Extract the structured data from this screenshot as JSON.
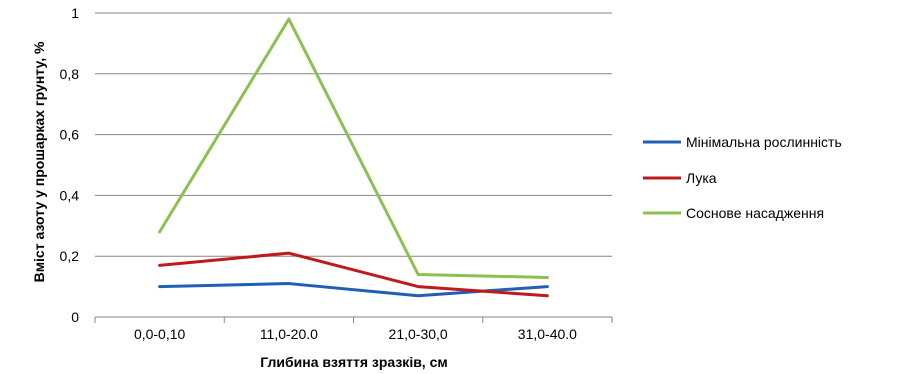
{
  "chart_data": {
    "type": "line",
    "categories": [
      "0,0-0,10",
      "11,0-20.0",
      "21,0-30,0",
      "31,0-40.0"
    ],
    "series": [
      {
        "name": "Мінімальна рослинність",
        "color": "#1f5fb4",
        "values": [
          0.1,
          0.11,
          0.07,
          0.1
        ]
      },
      {
        "name": "Лука",
        "color": "#c0191b",
        "values": [
          0.17,
          0.21,
          0.1,
          0.07
        ]
      },
      {
        "name": "Соснове насадження",
        "color": "#8cc152",
        "values": [
          0.28,
          0.98,
          0.14,
          0.13
        ]
      }
    ],
    "yticks": [
      "0",
      "0,2",
      "0,4",
      "0,6",
      "0,8",
      "1"
    ],
    "ytick_values": [
      0,
      0.2,
      0.4,
      0.6,
      0.8,
      1.0
    ],
    "ylim": [
      0,
      1
    ],
    "xlabel": "Глибина взяття зразків,  см",
    "ylabel": "Вміст азоту у прошарках грунту, %",
    "grid": true,
    "legend_position": "right"
  }
}
